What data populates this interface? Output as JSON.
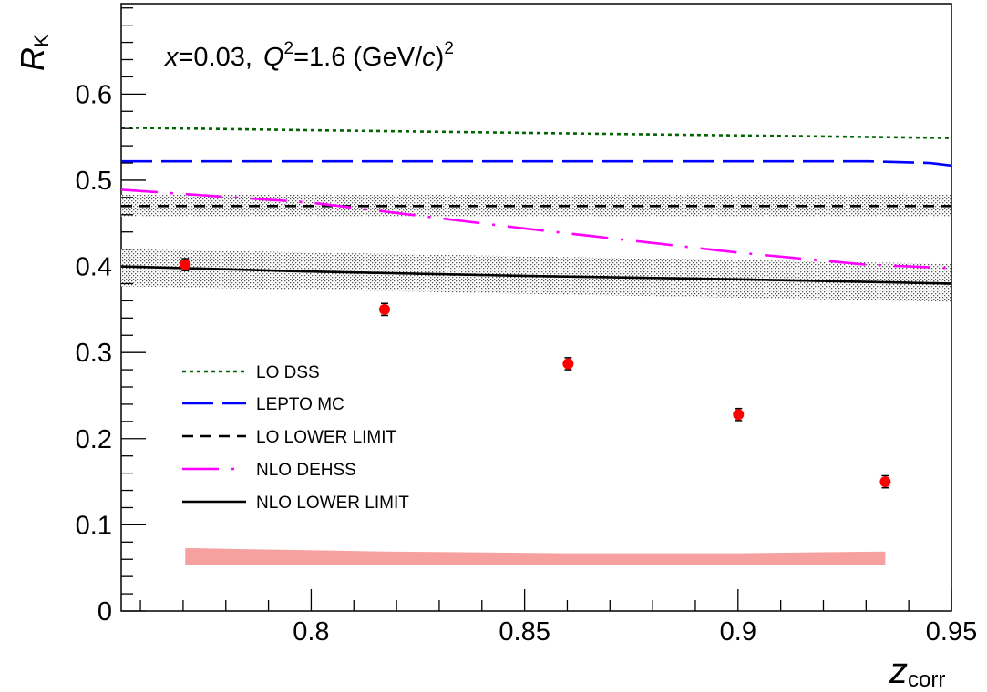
{
  "chart_data": {
    "type": "scatter",
    "annotation": {
      "x_sym": "x",
      "x_val": "=0.03,",
      "q_sym": "Q",
      "q_sup": "2",
      "q_val": "=1.6 (GeV/",
      "c_sym": "c",
      "close": ")",
      "close_sup": "2"
    },
    "xlabel": {
      "main": "z",
      "sub": "corr"
    },
    "ylabel": {
      "main": "R",
      "sub": "K"
    },
    "xlim": [
      0.7555,
      0.95
    ],
    "ylim": [
      0,
      0.705
    ],
    "x_tick_labels": [
      "0.8",
      "0.85",
      "0.9",
      "0.95"
    ],
    "y_tick_labels": [
      "0",
      "0.1",
      "0.2",
      "0.3",
      "0.4",
      "0.5",
      "0.6"
    ],
    "x_ticks": [
      0.8,
      0.85,
      0.9,
      0.95
    ],
    "y_ticks": [
      0,
      0.1,
      0.2,
      0.3,
      0.4,
      0.5,
      0.6
    ],
    "x_minor_step": 0.01,
    "y_minor_step": 0.02,
    "grid": false,
    "legend_position": "middle-left",
    "data_points": {
      "x": [
        0.7705,
        0.8172,
        0.8602,
        0.9001,
        0.9345
      ],
      "y": [
        0.402,
        0.35,
        0.287,
        0.228,
        0.15
      ],
      "yerr": [
        0.007,
        0.007,
        0.007,
        0.007,
        0.007
      ],
      "color": "#ff0000"
    },
    "systematic_band": {
      "x": [
        0.7705,
        0.8172,
        0.8602,
        0.9001,
        0.9345
      ],
      "y_low": [
        0.053,
        0.053,
        0.053,
        0.053,
        0.053
      ],
      "y_high": [
        0.073,
        0.069,
        0.067,
        0.067,
        0.069
      ],
      "color": "#f7a0a0"
    },
    "error_bands": [
      {
        "x": [
          0.7555,
          0.95
        ],
        "y_low": [
          0.458,
          0.458
        ],
        "y_high": [
          0.483,
          0.483
        ],
        "color": "#999999"
      },
      {
        "x": [
          0.7555,
          0.95
        ],
        "y_low": [
          0.377,
          0.359
        ],
        "y_high": [
          0.42,
          0.403
        ],
        "color": "#999999"
      }
    ],
    "series": [
      {
        "name": "LO DSS",
        "color": "#006400",
        "style": "dotted",
        "x": [
          0.7555,
          0.8,
          0.85,
          0.9,
          0.95
        ],
        "y": [
          0.561,
          0.558,
          0.555,
          0.552,
          0.549
        ]
      },
      {
        "name": "LEPTO MC",
        "color": "#0000ff",
        "style": "long-dash",
        "x": [
          0.7555,
          0.8,
          0.85,
          0.9,
          0.93,
          0.945,
          0.95
        ],
        "y": [
          0.522,
          0.522,
          0.522,
          0.522,
          0.522,
          0.52,
          0.517
        ]
      },
      {
        "name": "LO LOWER LIMIT",
        "color": "#000000",
        "style": "dashed",
        "x": [
          0.7555,
          0.95
        ],
        "y": [
          0.47,
          0.47
        ]
      },
      {
        "name": "NLO DEHSS",
        "color": "#ff00ff",
        "style": "dash-dot",
        "x": [
          0.7555,
          0.8,
          0.85,
          0.9,
          0.93,
          0.95
        ],
        "y": [
          0.489,
          0.474,
          0.444,
          0.416,
          0.402,
          0.398
        ]
      },
      {
        "name": "NLO LOWER LIMIT",
        "color": "#000000",
        "style": "solid",
        "x": [
          0.7555,
          0.8,
          0.85,
          0.9,
          0.95
        ],
        "y": [
          0.4,
          0.394,
          0.389,
          0.385,
          0.38
        ]
      }
    ]
  }
}
